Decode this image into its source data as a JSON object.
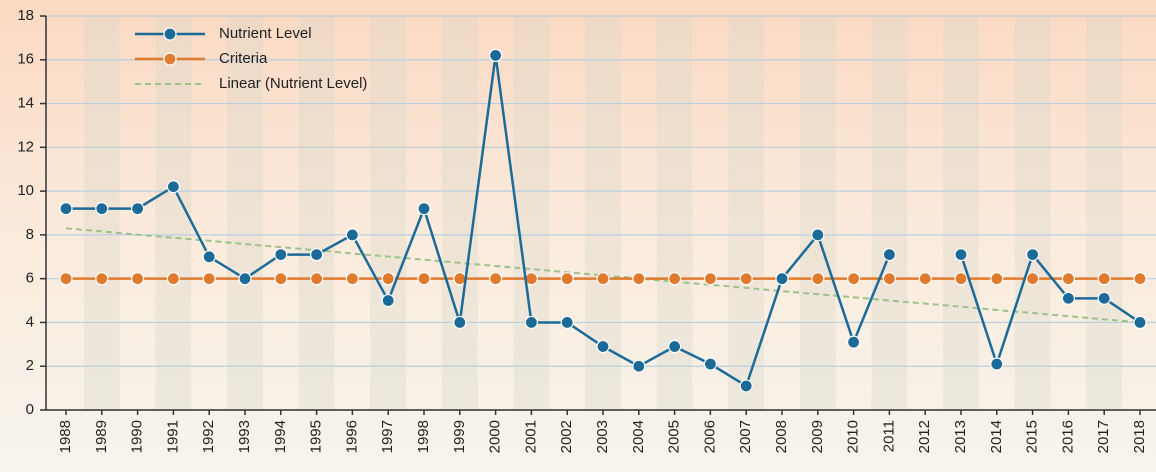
{
  "chart_data": {
    "type": "line",
    "categories": [
      "1988",
      "1989",
      "1990",
      "1991",
      "1992",
      "1993",
      "1994",
      "1995",
      "1996",
      "1997",
      "1998",
      "1999",
      "2000",
      "2001",
      "2002",
      "2003",
      "2004",
      "2005",
      "2006",
      "2007",
      "2008",
      "2009",
      "2010",
      "2011",
      "2012",
      "2013",
      "2014",
      "2015",
      "2016",
      "2017",
      "2018"
    ],
    "series": [
      {
        "name": "Nutrient Level",
        "color": "#1b6a98",
        "marker": true,
        "line_style": "solid",
        "values": [
          9.2,
          9.2,
          9.2,
          10.2,
          7,
          6,
          7.1,
          7.1,
          8,
          5,
          9.2,
          4,
          16.2,
          4,
          4,
          2.9,
          2,
          2.9,
          2.1,
          1.1,
          6,
          8,
          3.1,
          7.1,
          null,
          7.1,
          2.1,
          7.1,
          5.1,
          5.1,
          4
        ]
      },
      {
        "name": "Criteria",
        "color": "#e07a2c",
        "marker": true,
        "line_style": "solid",
        "values": [
          6,
          6,
          6,
          6,
          6,
          6,
          6,
          6,
          6,
          6,
          6,
          6,
          6,
          6,
          6,
          6,
          6,
          6,
          6,
          6,
          6,
          6,
          6,
          6,
          6,
          6,
          6,
          6,
          6,
          6,
          6
        ]
      },
      {
        "name": "Linear (Nutrient Level)",
        "color": "#9cc28c",
        "marker": false,
        "line_style": "dashed",
        "values": [
          8.3,
          8.16,
          8.01,
          7.87,
          7.73,
          7.58,
          7.44,
          7.3,
          7.15,
          7.01,
          6.87,
          6.72,
          6.58,
          6.44,
          6.29,
          6.15,
          6.01,
          5.86,
          5.72,
          5.58,
          5.43,
          5.29,
          5.15,
          5.0,
          4.86,
          4.72,
          4.57,
          4.43,
          4.29,
          4.14,
          4.0
        ]
      }
    ],
    "ylim": [
      0,
      18
    ],
    "yticks": [
      0,
      2,
      4,
      6,
      8,
      10,
      12,
      14,
      16,
      18
    ],
    "grid": true,
    "legend": "top-left"
  }
}
